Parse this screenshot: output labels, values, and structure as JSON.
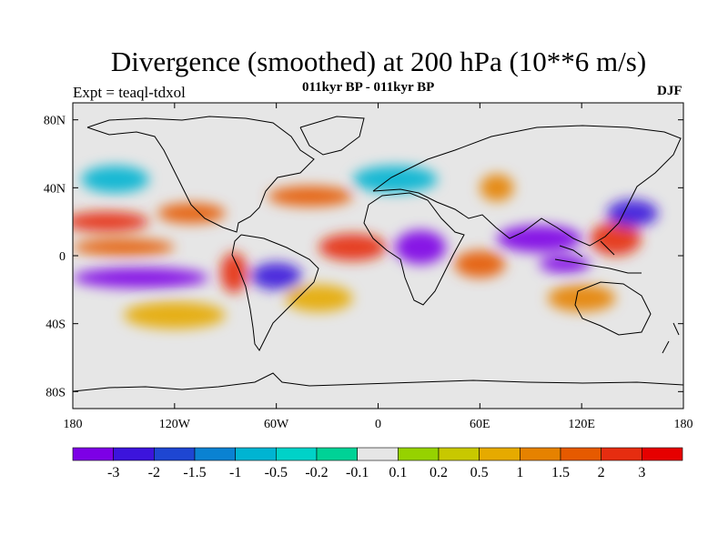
{
  "title": "Divergence (smoothed) at 200 hPa (10**6 m/s)",
  "subtitle": "011kyr BP - 011kyr BP",
  "experiment": "Expt = teaql-tdxol",
  "season": "DJF",
  "map": {
    "lon_range": [
      -180,
      180
    ],
    "lat_range": [
      -90,
      90
    ],
    "x_tick_labels": [
      {
        "lon": -180,
        "label": "180"
      },
      {
        "lon": -120,
        "label": "120W"
      },
      {
        "lon": -60,
        "label": "60W"
      },
      {
        "lon": 0,
        "label": "0"
      },
      {
        "lon": 60,
        "label": "60E"
      },
      {
        "lon": 120,
        "label": "120E"
      },
      {
        "lon": 180,
        "label": "180"
      }
    ],
    "y_tick_labels": [
      {
        "lat": 80,
        "label": "80N"
      },
      {
        "lat": 40,
        "label": "40N"
      },
      {
        "lat": 0,
        "label": "0"
      },
      {
        "lat": -40,
        "label": "40S"
      },
      {
        "lat": -80,
        "label": "80S"
      }
    ],
    "field_blobs": [
      {
        "lon": -160,
        "lat": 20,
        "rx": 25,
        "ry": 6,
        "level": 13
      },
      {
        "lon": -150,
        "lat": 5,
        "rx": 30,
        "ry": 5,
        "level": 12
      },
      {
        "lon": -140,
        "lat": -13,
        "rx": 40,
        "ry": 6,
        "level": 0
      },
      {
        "lon": -110,
        "lat": 25,
        "rx": 20,
        "ry": 6,
        "level": 12
      },
      {
        "lon": -85,
        "lat": -10,
        "rx": 8,
        "ry": 12,
        "level": 13
      },
      {
        "lon": -60,
        "lat": -12,
        "rx": 15,
        "ry": 8,
        "level": 1
      },
      {
        "lon": -40,
        "lat": 35,
        "rx": 25,
        "ry": 6,
        "level": 12
      },
      {
        "lon": -15,
        "lat": 5,
        "rx": 20,
        "ry": 8,
        "level": 13
      },
      {
        "lon": 25,
        "lat": 5,
        "rx": 15,
        "ry": 10,
        "level": 0
      },
      {
        "lon": 60,
        "lat": -5,
        "rx": 15,
        "ry": 8,
        "level": 12
      },
      {
        "lon": 95,
        "lat": 10,
        "rx": 25,
        "ry": 8,
        "level": 0
      },
      {
        "lon": 110,
        "lat": -5,
        "rx": 15,
        "ry": 5,
        "level": 0
      },
      {
        "lon": 140,
        "lat": 10,
        "rx": 15,
        "ry": 10,
        "level": 13
      },
      {
        "lon": 150,
        "lat": 25,
        "rx": 15,
        "ry": 8,
        "level": 1
      },
      {
        "lon": 70,
        "lat": 40,
        "rx": 10,
        "ry": 8,
        "level": 11
      },
      {
        "lon": -120,
        "lat": -35,
        "rx": 30,
        "ry": 8,
        "level": 10
      },
      {
        "lon": -35,
        "lat": -25,
        "rx": 20,
        "ry": 8,
        "level": 10
      },
      {
        "lon": 120,
        "lat": -25,
        "rx": 20,
        "ry": 8,
        "level": 11
      },
      {
        "lon": -155,
        "lat": 45,
        "rx": 20,
        "ry": 8,
        "level": 4
      },
      {
        "lon": 10,
        "lat": 45,
        "rx": 25,
        "ry": 8,
        "level": 4
      }
    ]
  },
  "colorbar": {
    "colors": [
      "#7d00e6",
      "#3c14dc",
      "#1e46d2",
      "#0a82d2",
      "#00b4d2",
      "#00d2c8",
      "#00d296",
      "#e6e6e6",
      "#96d200",
      "#c8c800",
      "#e6aa00",
      "#e68200",
      "#e65a00",
      "#e62d10",
      "#e60000"
    ],
    "tick_labels": [
      "-3",
      "-2",
      "-1.5",
      "-1",
      "-0.5",
      "-0.2",
      "-0.1",
      "0.1",
      "0.2",
      "0.5",
      "1",
      "1.5",
      "2",
      "3"
    ]
  }
}
